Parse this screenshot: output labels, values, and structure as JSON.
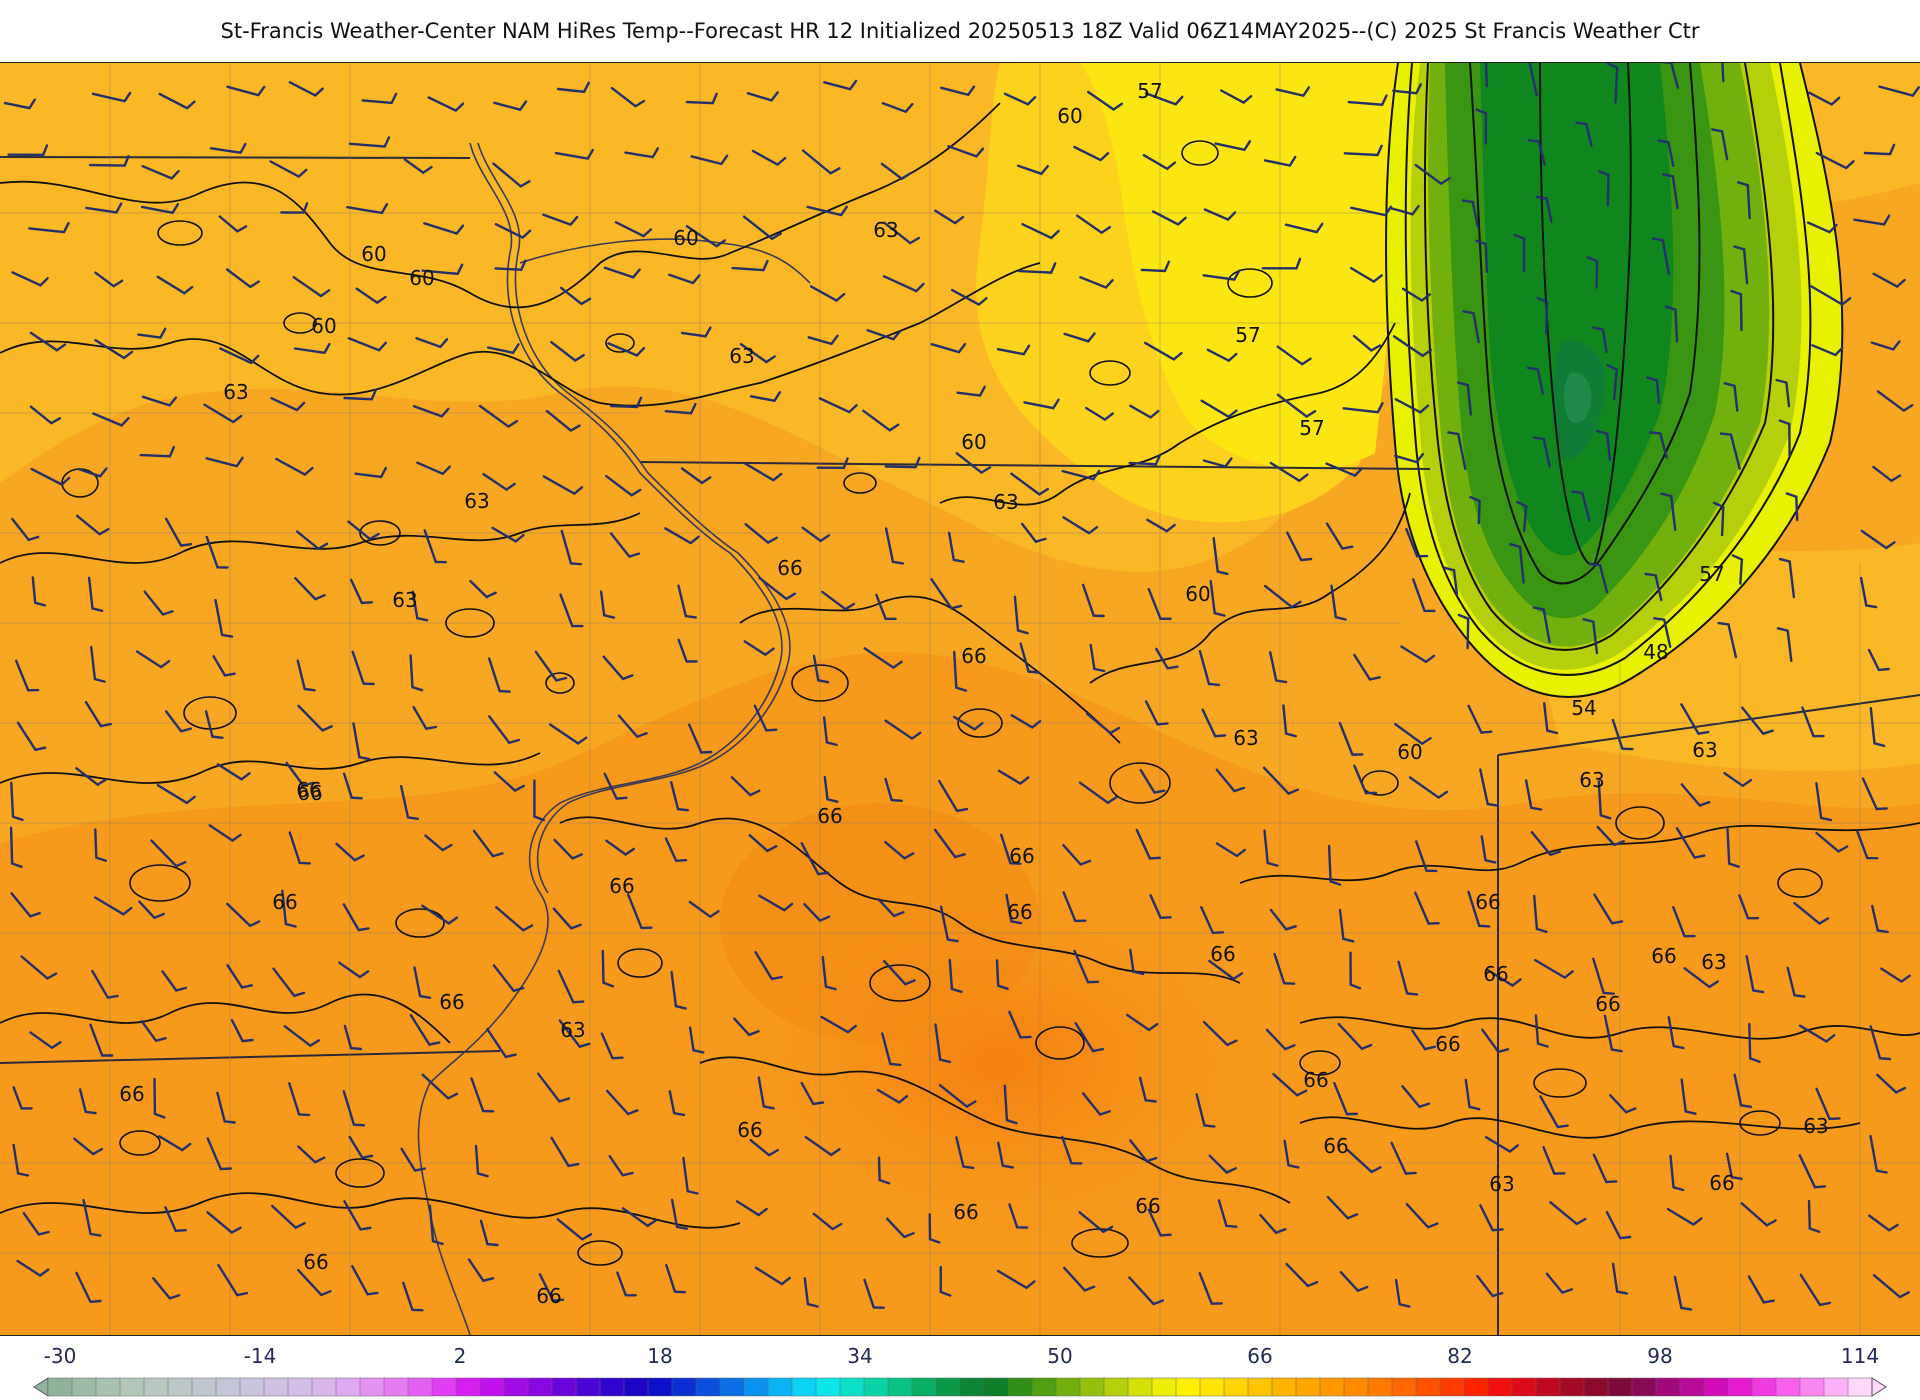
{
  "title": "St-Francis Weather-Center NAM HiRes Temp--Forecast HR 12 Initialized 20250513 18Z Valid 06Z14MAY2025--(C) 2025 St Francis Weather Ctr",
  "contour_labels": [
    "57",
    "60",
    "63",
    "60",
    "60",
    "60",
    "57",
    "63",
    "63",
    "60",
    "57",
    "63",
    "63",
    "60",
    "66",
    "66",
    "63",
    "66",
    "63",
    "60",
    "57",
    "48",
    "54",
    "63",
    "60",
    "63",
    "63",
    "66",
    "66",
    "66",
    "66",
    "66",
    "66",
    "66",
    "66",
    "66",
    "63",
    "66",
    "66",
    "66",
    "66",
    "66",
    "66",
    "66",
    "63",
    "66",
    "66",
    "66",
    "66",
    "63",
    "66",
    "66"
  ],
  "colorbar": {
    "ticks": [
      "-30",
      "-14",
      "2",
      "18",
      "34",
      "50",
      "66",
      "82",
      "98",
      "114"
    ],
    "colors": [
      "#8fb39a",
      "#9dbca5",
      "#a8c2b0",
      "#b1c6b8",
      "#b8c8c0",
      "#bcc7c8",
      "#c0c6d0",
      "#c5c5d8",
      "#c9c3de",
      "#cfc0e3",
      "#d4bce8",
      "#d9b5ec",
      "#dfa9ef",
      "#e394f1",
      "#e67cf2",
      "#e35ff2",
      "#df3ff1",
      "#d41fef",
      "#c010ec",
      "#a00be6",
      "#8a08e0",
      "#6a06da",
      "#4b05d4",
      "#2f04cc",
      "#1b04c4",
      "#0a10c8",
      "#0a2fd2",
      "#0a4fdc",
      "#0a70e6",
      "#0a92ee",
      "#0ab4f4",
      "#0ad3f6",
      "#0ae6ea",
      "#0ae0c9",
      "#0ad3a6",
      "#0ac285",
      "#0aae64",
      "#0a9a48",
      "#0a8633",
      "#0d7f26",
      "#2f8f16",
      "#4f9f12",
      "#72b00e",
      "#93c00c",
      "#b5d00a",
      "#d5e008",
      "#eeee06",
      "#fff200",
      "#ffe400",
      "#ffd400",
      "#ffc400",
      "#ffb400",
      "#ffa600",
      "#ff9800",
      "#ff8a00",
      "#ff7a00",
      "#ff6800",
      "#ff5200",
      "#ff3c00",
      "#ff2400",
      "#f01010",
      "#dc0a18",
      "#c00a20",
      "#a40a24",
      "#8c0a2a",
      "#7d0a3a",
      "#8a0a5a",
      "#a00a7a",
      "#b80a98",
      "#d00ab6",
      "#e41ad0",
      "#f03ae2",
      "#f660ea",
      "#fa88f0",
      "#fcb0f6",
      "#fed8fa"
    ]
  }
}
